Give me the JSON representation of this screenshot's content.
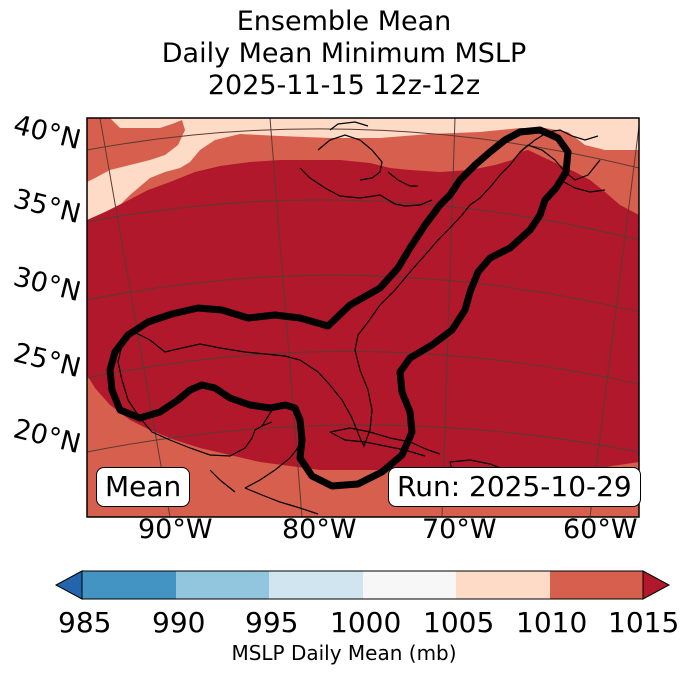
{
  "title": {
    "line1": "Ensemble Mean",
    "line2": "Daily Mean Minimum MSLP",
    "line3": "2025-11-15 12z-12z"
  },
  "map": {
    "lat_labels": [
      "40°N",
      "35°N",
      "30°N",
      "25°N",
      "20°N"
    ],
    "lon_labels": [
      "90°W",
      "80°W",
      "70°W",
      "60°W"
    ],
    "mean_label": "Mean",
    "run_label": "Run: 2025-10-29",
    "regions": [
      {
        "name": "1010-1015 mb band",
        "color": "#d6604d"
      },
      {
        "name": "1005-1010 mb band",
        "color": "#fddbc7"
      },
      {
        "name": "1015+ mb band",
        "color": "#b2182b"
      }
    ],
    "outline_color": "#000000"
  },
  "colorbar": {
    "ticks": [
      "985",
      "990",
      "995",
      "1000",
      "1005",
      "1010",
      "1015"
    ],
    "colors": [
      "#2166ac",
      "#4393c3",
      "#92c5de",
      "#d1e5f0",
      "#f7f7f7",
      "#fddbc7",
      "#d6604d",
      "#b2182b"
    ],
    "label": "MSLP Daily Mean (mb)"
  }
}
